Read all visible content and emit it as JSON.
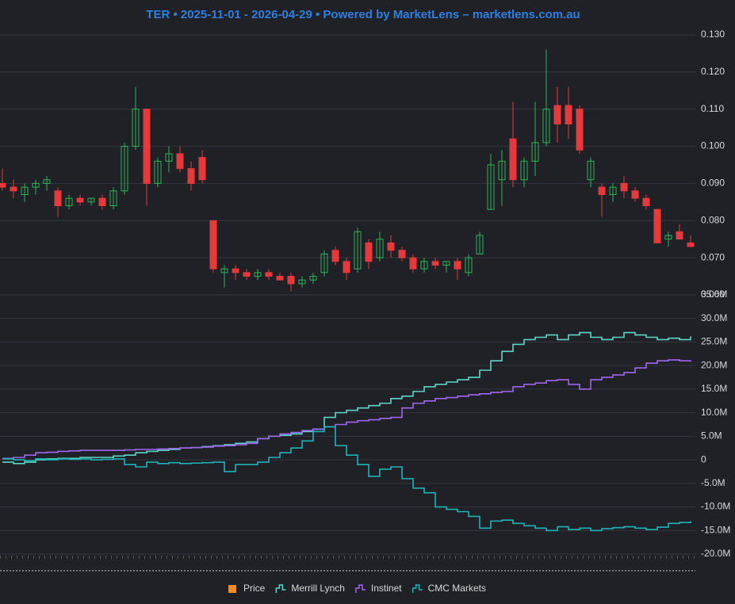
{
  "chart_data": [
    {
      "type": "candlestick",
      "title": "TER • 2025-11-01 - 2026-04-29 • Powered by MarketLens – marketlens.com.au",
      "ylim": [
        0.06,
        0.13
      ],
      "yticks": [
        {
          "value": 0.06,
          "label": "0.060"
        },
        {
          "value": 0.07,
          "label": "0.070"
        },
        {
          "value": 0.08,
          "label": "0.080"
        },
        {
          "value": 0.09,
          "label": "0.090"
        },
        {
          "value": 0.1,
          "label": "0.100"
        },
        {
          "value": 0.11,
          "label": "0.110"
        },
        {
          "value": 0.12,
          "label": "0.120"
        },
        {
          "value": 0.13,
          "label": "0.130"
        }
      ],
      "grid": true,
      "series": [
        {
          "name": "Price",
          "color": "#f28c28",
          "up_color": "#2fb457",
          "down_color": "#e5393c",
          "values": [
            [
              0.09,
              0.094,
              0.088,
              0.089
            ],
            [
              0.089,
              0.091,
              0.086,
              0.088
            ],
            [
              0.087,
              0.09,
              0.085,
              0.089
            ],
            [
              0.089,
              0.091,
              0.087,
              0.09
            ],
            [
              0.09,
              0.092,
              0.088,
              0.091
            ],
            [
              0.088,
              0.089,
              0.081,
              0.084
            ],
            [
              0.084,
              0.087,
              0.083,
              0.086
            ],
            [
              0.086,
              0.087,
              0.084,
              0.085
            ],
            [
              0.085,
              0.086,
              0.084,
              0.086
            ],
            [
              0.086,
              0.087,
              0.083,
              0.084
            ],
            [
              0.084,
              0.089,
              0.083,
              0.088
            ],
            [
              0.088,
              0.101,
              0.087,
              0.1
            ],
            [
              0.1,
              0.116,
              0.099,
              0.11
            ],
            [
              0.11,
              0.11,
              0.084,
              0.09
            ],
            [
              0.09,
              0.097,
              0.089,
              0.096
            ],
            [
              0.096,
              0.1,
              0.093,
              0.098
            ],
            [
              0.098,
              0.1,
              0.093,
              0.094
            ],
            [
              0.094,
              0.096,
              0.088,
              0.09
            ],
            [
              0.097,
              0.099,
              0.09,
              0.091
            ],
            [
              0.08,
              0.08,
              0.066,
              0.067
            ],
            [
              0.066,
              0.068,
              0.062,
              0.067
            ],
            [
              0.067,
              0.068,
              0.064,
              0.066
            ],
            [
              0.066,
              0.067,
              0.064,
              0.065
            ],
            [
              0.065,
              0.067,
              0.064,
              0.066
            ],
            [
              0.066,
              0.067,
              0.064,
              0.065
            ],
            [
              0.065,
              0.066,
              0.064,
              0.064
            ],
            [
              0.065,
              0.066,
              0.061,
              0.063
            ],
            [
              0.063,
              0.065,
              0.062,
              0.064
            ],
            [
              0.064,
              0.066,
              0.063,
              0.065
            ],
            [
              0.066,
              0.072,
              0.065,
              0.071
            ],
            [
              0.072,
              0.073,
              0.068,
              0.069
            ],
            [
              0.069,
              0.07,
              0.064,
              0.066
            ],
            [
              0.067,
              0.078,
              0.066,
              0.077
            ],
            [
              0.074,
              0.075,
              0.067,
              0.069
            ],
            [
              0.07,
              0.077,
              0.069,
              0.075
            ],
            [
              0.074,
              0.076,
              0.07,
              0.072
            ],
            [
              0.072,
              0.073,
              0.069,
              0.07
            ],
            [
              0.07,
              0.071,
              0.066,
              0.067
            ],
            [
              0.067,
              0.07,
              0.066,
              0.069
            ],
            [
              0.069,
              0.07,
              0.067,
              0.068
            ],
            [
              0.068,
              0.069,
              0.066,
              0.069
            ],
            [
              0.069,
              0.07,
              0.064,
              0.067
            ],
            [
              0.066,
              0.071,
              0.065,
              0.07
            ],
            [
              0.071,
              0.077,
              0.071,
              0.076
            ],
            [
              0.083,
              0.098,
              0.083,
              0.095
            ],
            [
              0.091,
              0.099,
              0.084,
              0.096
            ],
            [
              0.102,
              0.112,
              0.089,
              0.091
            ],
            [
              0.091,
              0.097,
              0.089,
              0.096
            ],
            [
              0.096,
              0.112,
              0.092,
              0.101
            ],
            [
              0.101,
              0.126,
              0.1,
              0.11
            ],
            [
              0.111,
              0.116,
              0.101,
              0.106
            ],
            [
              0.111,
              0.116,
              0.102,
              0.106
            ],
            [
              0.11,
              0.111,
              0.098,
              0.099
            ],
            [
              0.091,
              0.097,
              0.089,
              0.096
            ],
            [
              0.089,
              0.09,
              0.081,
              0.087
            ],
            [
              0.087,
              0.09,
              0.085,
              0.089
            ],
            [
              0.09,
              0.092,
              0.086,
              0.088
            ],
            [
              0.088,
              0.089,
              0.085,
              0.086
            ],
            [
              0.086,
              0.087,
              0.083,
              0.084
            ],
            [
              0.083,
              0.083,
              0.074,
              0.074
            ],
            [
              0.075,
              0.077,
              0.073,
              0.076
            ],
            [
              0.077,
              0.079,
              0.075,
              0.075
            ],
            [
              0.074,
              0.076,
              0.073,
              0.073
            ]
          ]
        }
      ]
    },
    {
      "type": "line",
      "ylim": [
        -20,
        35
      ],
      "yticks": [
        {
          "value": -20,
          "label": "-20.0M"
        },
        {
          "value": -15,
          "label": "-15.0M"
        },
        {
          "value": -10,
          "label": "-10.0M"
        },
        {
          "value": -5,
          "label": "-5.0M"
        },
        0,
        {
          "value": 5,
          "label": "5.0M"
        },
        {
          "value": 10,
          "label": "10.0M"
        },
        {
          "value": 15,
          "label": "15.0M"
        },
        {
          "value": 20,
          "label": "20.0M"
        },
        {
          "value": 25,
          "label": "25.0M"
        },
        {
          "value": 30,
          "label": "30.0M"
        },
        {
          "value": 35,
          "label": "35.0M"
        }
      ],
      "grid": true,
      "step": true,
      "series": [
        {
          "name": "Merrill Lynch",
          "color": "#5fd6c4",
          "values": [
            -0.5,
            -0.8,
            -0.5,
            0,
            0.2,
            0.3,
            0.3,
            0.5,
            0.5,
            0.5,
            0.8,
            1,
            1.5,
            1.8,
            2,
            2.2,
            2.5,
            2.6,
            2.8,
            3,
            3.2,
            3.5,
            3.8,
            4.5,
            5,
            5.2,
            5.5,
            6,
            6.5,
            9,
            10,
            10.5,
            11,
            11.5,
            12,
            13,
            13.5,
            14.5,
            15.5,
            16,
            16.5,
            17,
            17.5,
            19,
            21,
            23,
            24.5,
            25.5,
            26,
            26.5,
            25.5,
            26.5,
            27,
            26,
            25.5,
            26,
            27,
            26.5,
            26,
            25.5,
            25.8,
            25.5,
            26.2
          ]
        },
        {
          "name": "Instinet",
          "color": "#a066ee",
          "values": [
            0.3,
            0.5,
            1,
            1.5,
            1.6,
            1.8,
            1.9,
            2,
            2,
            2,
            2,
            2.1,
            2.2,
            2.2,
            2.3,
            2.4,
            2.5,
            2.6,
            2.7,
            2.9,
            3,
            3.2,
            3.5,
            4.5,
            5,
            5.5,
            5.8,
            6.2,
            6.5,
            7,
            7.5,
            8,
            8.3,
            8.5,
            8.8,
            9,
            11,
            12,
            12.5,
            13,
            13.2,
            13.5,
            13.8,
            14,
            14.3,
            14.5,
            15.5,
            16,
            16.3,
            16.8,
            17,
            16,
            15,
            17,
            17.5,
            18,
            18.5,
            19.5,
            20.5,
            21,
            21.2,
            21,
            20.8
          ]
        },
        {
          "name": "CMC Markets",
          "color": "#1fb3b8",
          "values": [
            0.2,
            0,
            -0.2,
            0.2,
            0,
            0.2,
            0.1,
            0.2,
            0,
            0.1,
            0.2,
            -1,
            -1.5,
            -0.5,
            -0.8,
            -0.6,
            -0.8,
            -0.7,
            -0.6,
            -0.5,
            -2.5,
            -1,
            -1,
            -0.5,
            0.5,
            1.5,
            2.5,
            4,
            6,
            7,
            3,
            1,
            -1,
            -3.5,
            -2,
            -1.5,
            -4,
            -6,
            -7,
            -10,
            -10.5,
            -11,
            -12,
            -14.5,
            -13,
            -12.8,
            -13.5,
            -14,
            -14.5,
            -15,
            -14.2,
            -14.8,
            -14.5,
            -15,
            -14.6,
            -14.4,
            -14.2,
            -14.5,
            -14.8,
            -14.3,
            -13.5,
            -13.3,
            -13
          ]
        }
      ]
    }
  ]
}
